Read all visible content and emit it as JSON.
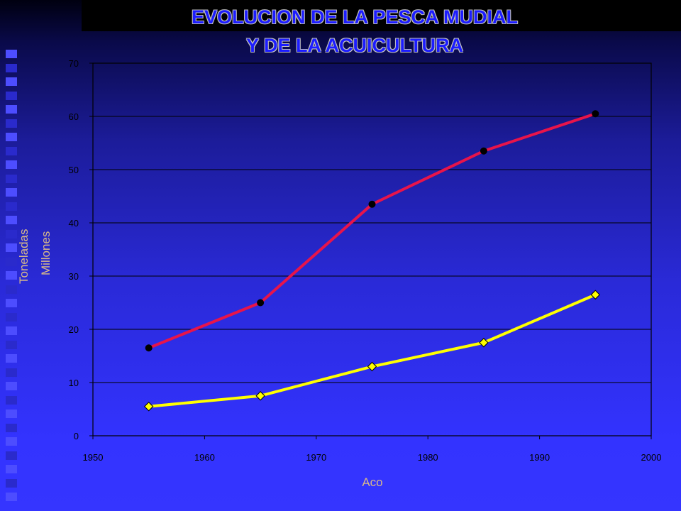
{
  "title_lines": [
    "EVOLUCION DE LA PESCA MUDIAL",
    "Y DE LA ACUICULTURA"
  ],
  "colors": {
    "background": "#3333ff",
    "axis_label": "#d9b98a",
    "series_1": "#e8144a",
    "series_2": "#ffff00",
    "title": "#1c1cff"
  },
  "chart_data": {
    "type": "line",
    "title": "EVOLUCION DE LA PESCA MUDIAL Y DE LA ACUICULTURA",
    "xlabel": "Aco",
    "ylabel_lines": [
      "Toneladas",
      "Millones"
    ],
    "xlim": [
      1950,
      2000
    ],
    "ylim": [
      0,
      70
    ],
    "x_ticks": [
      1950,
      1960,
      1970,
      1980,
      1990,
      2000
    ],
    "y_ticks": [
      0,
      10,
      20,
      30,
      40,
      50,
      60,
      70
    ],
    "grid": true,
    "legend": "none",
    "series": [
      {
        "color": "#e8144a",
        "marker": "circle",
        "points": [
          [
            1955,
            16.5
          ],
          [
            1965,
            25
          ],
          [
            1975,
            43.5
          ],
          [
            1985,
            53.5
          ],
          [
            1995,
            60.5
          ]
        ]
      },
      {
        "color": "#ffff00",
        "marker": "diamond",
        "points": [
          [
            1955,
            5.5
          ],
          [
            1965,
            7.5
          ],
          [
            1975,
            13
          ],
          [
            1985,
            17.5
          ],
          [
            1995,
            26.5
          ]
        ]
      }
    ]
  }
}
